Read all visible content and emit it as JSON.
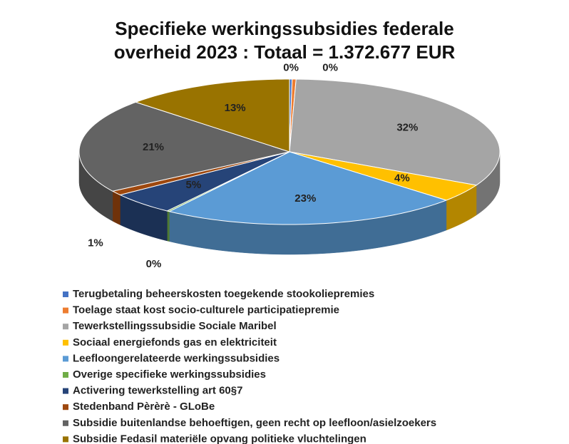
{
  "chart_data": {
    "type": "pie3d",
    "title": "Specifieke werkingssubsidies federale\noverheid 2023 : Totaal = 1.372.677 EUR",
    "categories": [
      "Terugbetaling beheerskosten toegekende stookoliepremies",
      "Toelage staat kost socio-culturele participatiepremie",
      "Tewerkstellingssubsidie Sociale Maribel",
      "Sociaal energiefonds gas en elektriciteit",
      "Leefloongerelateerde werkingssubsidies",
      "Overige specifieke werkingssubsidies",
      "Activering tewerkstelling art 60§7",
      "Stedenband Pèrèrè - GLoBe",
      "Subsidie buitenlandse behoeftigen, geen recht op leefloon/asielzoekers",
      "Subsidie Fedasil materiële opvang politieke vluchtelingen"
    ],
    "values": [
      0.2,
      0.3,
      32,
      4,
      23,
      0.2,
      5,
      1,
      21,
      13
    ],
    "value_labels": [
      "0%",
      "0%",
      "32%",
      "4%",
      "23%",
      "0%",
      "5%",
      "1%",
      "21%",
      "13%"
    ],
    "colors": [
      "#4472c4",
      "#ed7d31",
      "#a5a5a5",
      "#ffc000",
      "#5b9bd5",
      "#70ad47",
      "#264478",
      "#9e480e",
      "#636363",
      "#997300"
    ],
    "legend": "bottom"
  }
}
